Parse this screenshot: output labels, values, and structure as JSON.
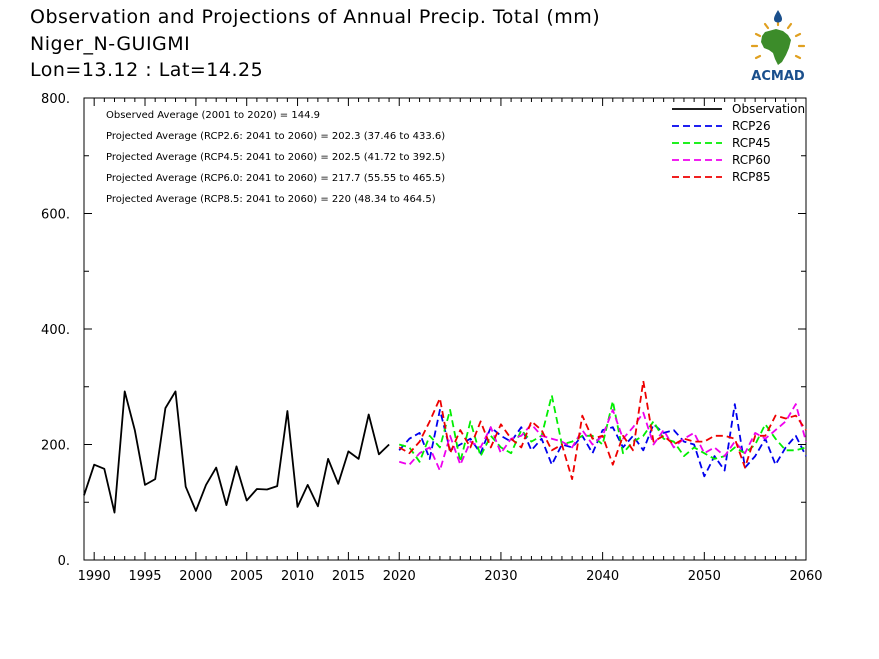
{
  "title": {
    "line1": "Observation and Projections of Annual Precip. Total (mm)",
    "line2": "Niger_N-GUIGMI",
    "line3": "Lon=13.12 : Lat=14.25"
  },
  "logo": {
    "text": "ACMAD"
  },
  "colors": {
    "Observation": "#000000",
    "RCP26": "#0000ee",
    "RCP45": "#00ee00",
    "RCP60": "#ee00ee",
    "RCP85": "#ee0000",
    "logo_green": "#3c8c2a",
    "logo_gold": "#e0a020",
    "logo_blue": "#1a4f8c"
  },
  "chart_data": {
    "type": "line",
    "xlim": [
      1989,
      2060
    ],
    "ylim": [
      0,
      800
    ],
    "xticks": [
      1990,
      1995,
      2000,
      2005,
      2010,
      2015,
      2020,
      2030,
      2040,
      2050,
      2060
    ],
    "yticks": [
      0,
      200,
      400,
      600,
      800
    ],
    "ytick_labels": [
      "0.",
      "200.",
      "400.",
      "600.",
      "800."
    ],
    "grid": false,
    "legend_position": "top-right",
    "annotations": [
      "Observed Average (2001 to 2020) = 144.9",
      "Projected Average (RCP2.6: 2041 to 2060) = 202.3 (37.46 to 433.6)",
      "Projected Average (RCP4.5: 2041 to 2060) = 202.5 (41.72 to 392.5)",
      "Projected Average (RCP6.0: 2041 to 2060) = 217.7 (55.55 to 465.5)",
      "Projected Average (RCP8.5: 2041 to 2060) = 220 (48.34 to 464.5)"
    ],
    "series": [
      {
        "name": "Observation",
        "style": "solid",
        "x": [
          1989,
          1990,
          1991,
          1992,
          1993,
          1994,
          1995,
          1996,
          1997,
          1998,
          1999,
          2000,
          2001,
          2002,
          2003,
          2004,
          2005,
          2006,
          2007,
          2008,
          2009,
          2010,
          2011,
          2012,
          2013,
          2014,
          2015,
          2016,
          2017,
          2018,
          2019
        ],
        "y": [
          112,
          165,
          158,
          82,
          292,
          225,
          130,
          140,
          263,
          292,
          127,
          85,
          130,
          160,
          95,
          162,
          103,
          123,
          122,
          128,
          258,
          92,
          130,
          93,
          175,
          132,
          188,
          175,
          252,
          183,
          200
        ]
      },
      {
        "name": "RCP26",
        "style": "dashed",
        "x": [
          2020,
          2021,
          2022,
          2023,
          2024,
          2025,
          2026,
          2027,
          2028,
          2029,
          2030,
          2031,
          2032,
          2033,
          2034,
          2035,
          2036,
          2037,
          2038,
          2039,
          2040,
          2041,
          2042,
          2043,
          2044,
          2045,
          2046,
          2047,
          2048,
          2049,
          2050,
          2051,
          2052,
          2053,
          2054,
          2055,
          2056,
          2057,
          2058,
          2059,
          2060
        ],
        "y": [
          190,
          210,
          220,
          175,
          260,
          190,
          200,
          210,
          185,
          230,
          215,
          205,
          230,
          190,
          210,
          165,
          200,
          195,
          215,
          185,
          225,
          230,
          195,
          215,
          190,
          235,
          220,
          225,
          205,
          200,
          145,
          180,
          155,
          270,
          160,
          180,
          210,
          165,
          195,
          215,
          180
        ]
      },
      {
        "name": "RCP45",
        "style": "dashed",
        "x": [
          2020,
          2021,
          2022,
          2023,
          2024,
          2025,
          2026,
          2027,
          2028,
          2029,
          2030,
          2031,
          2032,
          2033,
          2034,
          2035,
          2036,
          2037,
          2038,
          2039,
          2040,
          2041,
          2042,
          2043,
          2044,
          2045,
          2046,
          2047,
          2048,
          2049,
          2050,
          2051,
          2052,
          2053,
          2054,
          2055,
          2056,
          2057,
          2058,
          2059,
          2060
        ],
        "y": [
          200,
          195,
          170,
          215,
          195,
          260,
          170,
          240,
          180,
          215,
          195,
          185,
          225,
          205,
          215,
          285,
          200,
          205,
          215,
          215,
          200,
          275,
          185,
          205,
          215,
          240,
          210,
          205,
          180,
          195,
          185,
          175,
          180,
          195,
          185,
          200,
          235,
          210,
          190,
          190,
          195
        ]
      },
      {
        "name": "RCP60",
        "style": "dashed",
        "x": [
          2020,
          2021,
          2022,
          2023,
          2024,
          2025,
          2026,
          2027,
          2028,
          2029,
          2030,
          2031,
          2032,
          2033,
          2034,
          2035,
          2036,
          2037,
          2038,
          2039,
          2040,
          2041,
          2042,
          2043,
          2044,
          2045,
          2046,
          2047,
          2048,
          2049,
          2050,
          2051,
          2052,
          2053,
          2054,
          2055,
          2056,
          2057,
          2058,
          2059,
          2060
        ],
        "y": [
          170,
          165,
          185,
          195,
          155,
          215,
          165,
          205,
          195,
          230,
          185,
          210,
          215,
          235,
          215,
          210,
          205,
          195,
          225,
          200,
          215,
          260,
          210,
          230,
          255,
          200,
          225,
          195,
          210,
          220,
          185,
          195,
          180,
          205,
          185,
          220,
          210,
          225,
          240,
          270,
          205
        ]
      },
      {
        "name": "RCP85",
        "style": "dashed",
        "x": [
          2020,
          2021,
          2022,
          2023,
          2024,
          2025,
          2026,
          2027,
          2028,
          2029,
          2030,
          2031,
          2032,
          2033,
          2034,
          2035,
          2036,
          2037,
          2038,
          2039,
          2040,
          2041,
          2042,
          2043,
          2044,
          2045,
          2046,
          2047,
          2048,
          2049,
          2050,
          2051,
          2052,
          2053,
          2054,
          2055,
          2056,
          2057,
          2058,
          2059,
          2060
        ],
        "y": [
          195,
          185,
          205,
          240,
          280,
          185,
          225,
          195,
          240,
          195,
          235,
          210,
          195,
          240,
          225,
          190,
          200,
          140,
          250,
          210,
          215,
          165,
          215,
          190,
          310,
          205,
          215,
          200,
          210,
          205,
          205,
          215,
          215,
          210,
          160,
          215,
          215,
          250,
          245,
          250,
          225
        ]
      }
    ]
  }
}
